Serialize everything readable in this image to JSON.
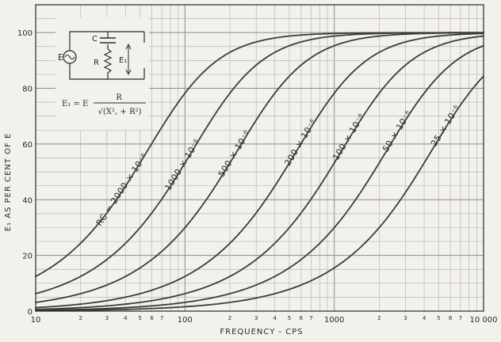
{
  "chart_data": {
    "type": "line",
    "x_scale": "log",
    "xlim": [
      10,
      10000
    ],
    "ylim": [
      0,
      110
    ],
    "grid": true,
    "xlabel": "FREQUENCY - CPS",
    "ylabel": "E₁ AS PER CENT OF E",
    "x_major_ticks": [
      {
        "value": 10,
        "label": "10"
      },
      {
        "value": 100,
        "label": "100"
      },
      {
        "value": 1000,
        "label": "1000"
      },
      {
        "value": 10000,
        "label": "10 000"
      }
    ],
    "x_minor_ticks": [
      {
        "value": 20,
        "label": "2"
      },
      {
        "value": 30,
        "label": "3"
      },
      {
        "value": 40,
        "label": "4"
      },
      {
        "value": 50,
        "label": "5"
      },
      {
        "value": 60,
        "label": "6"
      },
      {
        "value": 70,
        "label": "7"
      },
      {
        "value": 200,
        "label": "2"
      },
      {
        "value": 300,
        "label": "3"
      },
      {
        "value": 400,
        "label": "4"
      },
      {
        "value": 500,
        "label": "5"
      },
      {
        "value": 600,
        "label": "6"
      },
      {
        "value": 700,
        "label": "7"
      },
      {
        "value": 2000,
        "label": "2"
      },
      {
        "value": 3000,
        "label": "3"
      },
      {
        "value": 4000,
        "label": "4"
      },
      {
        "value": 5000,
        "label": "5"
      },
      {
        "value": 6000,
        "label": "6"
      },
      {
        "value": 7000,
        "label": "7"
      }
    ],
    "y_ticks": [
      {
        "value": 0,
        "label": "0"
      },
      {
        "value": 20,
        "label": "20"
      },
      {
        "value": 40,
        "label": "40"
      },
      {
        "value": 60,
        "label": "60"
      },
      {
        "value": 80,
        "label": "80"
      },
      {
        "value": 100,
        "label": "100"
      }
    ],
    "series": [
      {
        "name": "RC = 2000 × 10⁻⁶",
        "rc": 0.002,
        "x": [
          10,
          20,
          30,
          50,
          80,
          100,
          200,
          500,
          1000,
          10000
        ],
        "y": [
          12.5,
          24.4,
          35.3,
          53.2,
          70.9,
          78.2,
          92.9,
          98.8,
          99.7,
          100
        ]
      },
      {
        "name": "1000 × 10⁻⁶",
        "rc": 0.001,
        "x": [
          10,
          20,
          30,
          50,
          100,
          200,
          300,
          500,
          1000,
          2000,
          10000
        ],
        "y": [
          6.3,
          12.5,
          18.5,
          30.0,
          53.2,
          78.2,
          88.4,
          95.3,
          98.8,
          99.7,
          100
        ]
      },
      {
        "name": "500 × 10⁻⁶",
        "rc": 0.0005,
        "x": [
          10,
          30,
          50,
          100,
          200,
          300,
          500,
          1000,
          2000,
          10000
        ],
        "y": [
          3.1,
          9.4,
          15.5,
          30.0,
          53.2,
          68.6,
          84.3,
          95.3,
          98.8,
          100
        ]
      },
      {
        "name": "200 × 10⁻⁶",
        "rc": 0.0002,
        "x": [
          10,
          50,
          100,
          200,
          300,
          500,
          800,
          1000,
          2000,
          5000,
          10000
        ],
        "y": [
          1.3,
          6.3,
          12.5,
          24.4,
          35.3,
          53.2,
          70.9,
          78.2,
          92.9,
          98.8,
          100
        ]
      },
      {
        "name": "100 × 10⁻⁶",
        "rc": 0.0001,
        "x": [
          10,
          100,
          200,
          300,
          500,
          1000,
          1500,
          2000,
          3000,
          5000,
          10000
        ],
        "y": [
          0.6,
          6.3,
          12.5,
          18.5,
          30.0,
          53.2,
          68.6,
          78.2,
          88.4,
          95.3,
          98.8
        ]
      },
      {
        "name": "50 × 10⁻⁶",
        "rc": 5e-05,
        "x": [
          10,
          100,
          300,
          500,
          1000,
          2000,
          3000,
          5000,
          7000,
          10000
        ],
        "y": [
          0.3,
          3.1,
          9.4,
          15.5,
          30.0,
          53.2,
          68.6,
          84.3,
          91.1,
          95.3
        ]
      },
      {
        "name": "25 × 10⁻⁶",
        "rc": 2.5e-05,
        "x": [
          10,
          100,
          500,
          1000,
          2000,
          3000,
          5000,
          7000,
          10000
        ],
        "y": [
          0.2,
          1.6,
          7.8,
          15.5,
          30.0,
          42.7,
          61.8,
          74.0,
          84.3
        ]
      }
    ],
    "curve_labels": [
      {
        "text": "RC = 2000 × 10⁻⁶",
        "series_index": 0
      },
      {
        "text": "1000 × 10⁻⁶",
        "series_index": 1
      },
      {
        "text": "500 × 10⁻⁶",
        "series_index": 2
      },
      {
        "text": "200 × 10⁻⁶",
        "series_index": 3
      },
      {
        "text": "100 × 10⁻⁶",
        "series_index": 4
      },
      {
        "text": "50 × 10⁻⁶",
        "series_index": 5
      },
      {
        "text": "25 × 10⁻⁶",
        "series_index": 6
      }
    ]
  },
  "inset": {
    "source_label": "E",
    "capacitor_label": "C",
    "resistor_label": "R",
    "output_label": "E₁",
    "formula_lhs": "E₁ = E",
    "formula_numerator": "R",
    "formula_denominator": "√(X²꜀ + R²)"
  },
  "colors": {
    "background": "#f3f1ec",
    "grid": "#b9b6ae",
    "grid_major": "#8e8b84",
    "curve": "#3c3c3c",
    "text": "#2a2a2a"
  }
}
